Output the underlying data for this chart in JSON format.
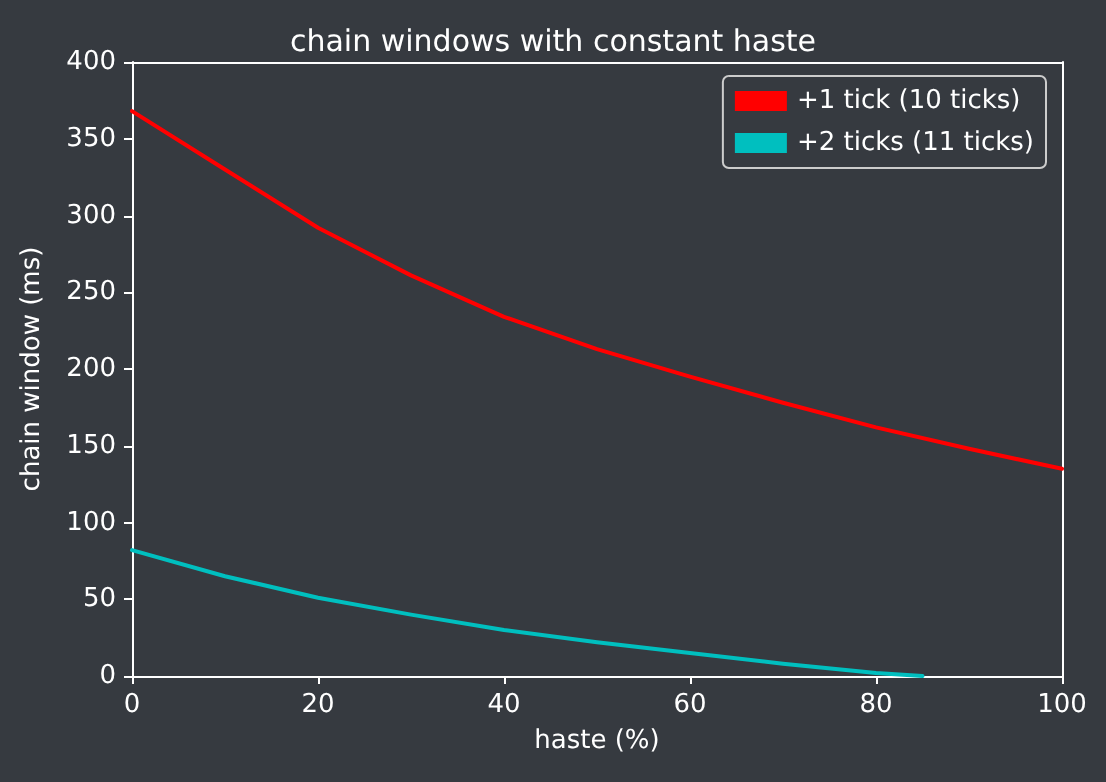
{
  "chart_data": {
    "type": "line",
    "title": "chain windows with constant haste",
    "xlabel": "haste (%)",
    "ylabel": "chain window (ms)",
    "xlim": [
      0,
      100
    ],
    "xticks": [
      0,
      20,
      40,
      60,
      80,
      100
    ],
    "ylim": [
      0,
      400
    ],
    "yticks": [
      0,
      50,
      100,
      150,
      200,
      250,
      300,
      350,
      400
    ],
    "grid": false,
    "legend": "top right",
    "marker": "none",
    "line_style": "solid",
    "series": [
      {
        "name": "+1 tick (10 ticks)",
        "color": "#ff0000",
        "x": [
          0,
          10,
          20,
          30,
          40,
          50,
          60,
          70,
          80,
          90,
          100
        ],
        "values": [
          368,
          330,
          292,
          261,
          234,
          213,
          195,
          178,
          162,
          148,
          135
        ]
      },
      {
        "name": "+2 ticks (11 ticks)",
        "color": "#00bfbf",
        "x": [
          0,
          10,
          20,
          30,
          40,
          50,
          60,
          70,
          80,
          85
        ],
        "values": [
          82,
          65,
          51,
          40,
          30,
          22,
          15,
          8,
          2,
          0
        ]
      }
    ]
  }
}
